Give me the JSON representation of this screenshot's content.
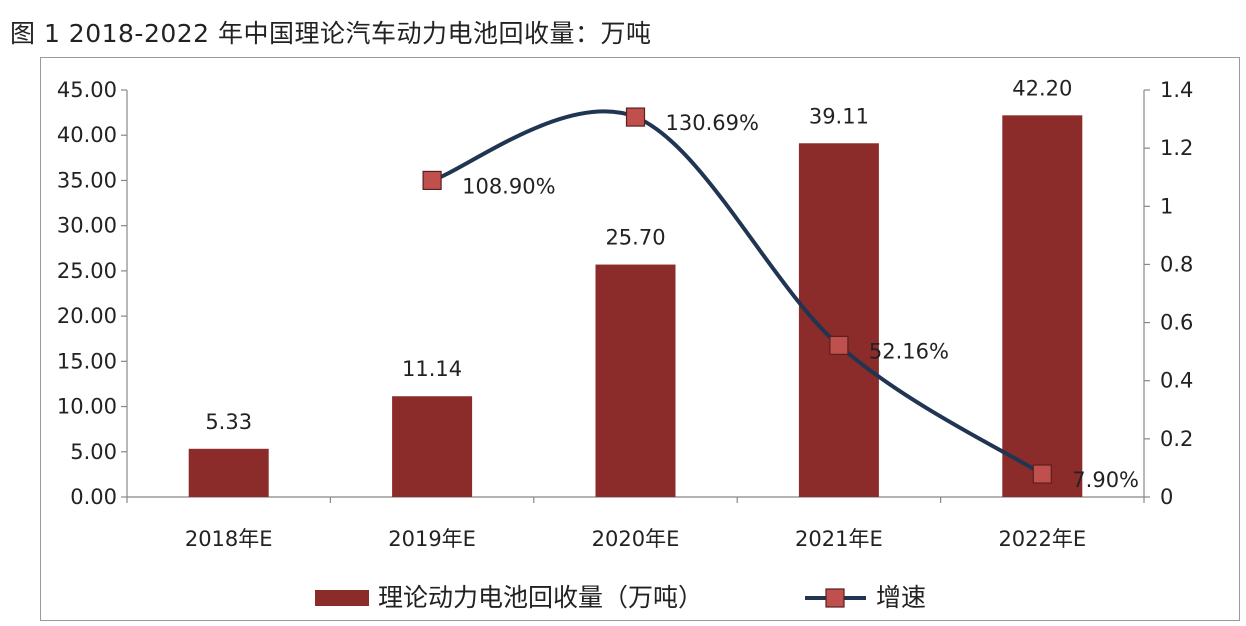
{
  "title": "图 1 2018-2022 年中国理论汽车动力电池回收量：万吨",
  "chart_data": {
    "type": "bar",
    "categories": [
      "2018年E",
      "2019年E",
      "2020年E",
      "2021年E",
      "2022年E"
    ],
    "series": [
      {
        "name": "理论动力电池回收量（万吨）",
        "type": "bar",
        "axis": "left",
        "values": [
          5.33,
          11.14,
          25.7,
          39.11,
          42.2
        ],
        "labels": [
          "5.33",
          "11.14",
          "25.70",
          "39.11",
          "42.20"
        ],
        "color": "#8b2c2a"
      },
      {
        "name": "增速",
        "type": "line",
        "axis": "right",
        "values": [
          null,
          1.089,
          1.3069,
          0.5216,
          0.079
        ],
        "labels": [
          "",
          "108.90%",
          "130.69%",
          "52.16%",
          "7.90%"
        ],
        "line_color": "#1f3552",
        "marker_color": "#c0504d"
      }
    ],
    "y_left": {
      "min": 0,
      "max": 45,
      "step": 5,
      "tick_labels": [
        "0.00",
        "5.00",
        "10.00",
        "15.00",
        "20.00",
        "25.00",
        "30.00",
        "35.00",
        "40.00",
        "45.00"
      ]
    },
    "y_right": {
      "min": 0,
      "max": 1.4,
      "step": 0.2,
      "tick_labels": [
        "0",
        "0.2",
        "0.4",
        "0.6",
        "0.8",
        "1",
        "1.2",
        "1.4"
      ]
    },
    "grid": false,
    "legend": "bottom"
  }
}
